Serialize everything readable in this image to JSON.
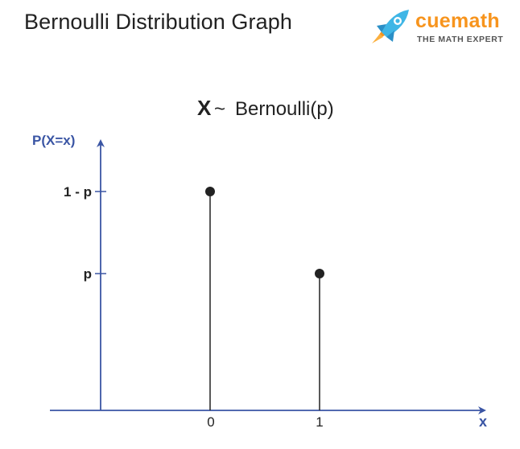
{
  "page": {
    "title": "Bernoulli Distribution Graph"
  },
  "logo": {
    "brand": "cuemath",
    "tagline": "THE MATH EXPERT",
    "icon": "rocket-icon"
  },
  "colors": {
    "axis": "#3a55a4",
    "stem": "#222222",
    "point": "#222222",
    "title_text": "#222222",
    "brand": "#f7941d",
    "rocket_blue": "#3fb6e6"
  },
  "chart_data": {
    "type": "stem",
    "title_symbol": "X",
    "title_tilde": "~",
    "title_dist": "Bernoulli(p)",
    "ylabel": "P(X=x)",
    "xlabel": "x",
    "x_ticks": [
      "0",
      "1"
    ],
    "y_ticks": [
      "1 - p",
      "p"
    ],
    "points": [
      {
        "x": 0,
        "y_label": "1 - p",
        "y": 0.7
      },
      {
        "x": 1,
        "y_label": "p",
        "y": 0.5
      }
    ]
  }
}
